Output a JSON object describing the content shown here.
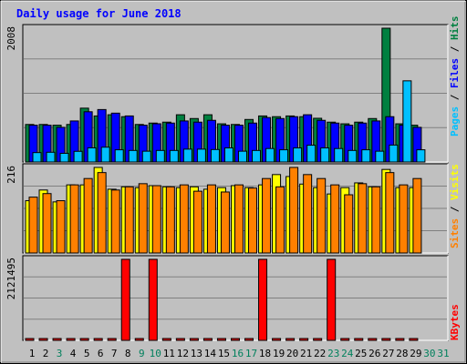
{
  "chart_data": [
    {
      "type": "bar",
      "title": "Daily usage for June 2018",
      "panel": "top",
      "ymax_label": "2008",
      "ylim": [
        0,
        2008
      ],
      "categories": [
        "1",
        "2",
        "3",
        "4",
        "5",
        "6",
        "7",
        "8",
        "9",
        "10",
        "11",
        "12",
        "13",
        "14",
        "15",
        "16",
        "17",
        "18",
        "19",
        "20",
        "21",
        "22",
        "23",
        "24",
        "25",
        "26",
        "27",
        "28",
        "29",
        "30",
        "31"
      ],
      "series": [
        {
          "name": "Hits",
          "color": "#008040",
          "values": [
            563,
            563,
            552,
            563,
            808,
            691,
            709,
            680,
            563,
            584,
            598,
            709,
            652,
            709,
            573,
            563,
            638,
            691,
            680,
            691,
            680,
            656,
            598,
            573,
            598,
            652,
            2008,
            573,
            552,
            0,
            0
          ]
        },
        {
          "name": "Files",
          "color": "#0000ff",
          "values": [
            552,
            552,
            520,
            616,
            754,
            787,
            733,
            691,
            552,
            574,
            584,
            616,
            598,
            625,
            552,
            552,
            584,
            667,
            652,
            680,
            709,
            625,
            584,
            552,
            584,
            616,
            680,
            552,
            520,
            0,
            0
          ]
        },
        {
          "name": "Pages",
          "color": "#00c0ff",
          "values": [
            141,
            146,
            130,
            160,
            212,
            222,
            183,
            173,
            162,
            173,
            173,
            193,
            193,
            187,
            211,
            162,
            173,
            202,
            183,
            211,
            252,
            211,
            202,
            173,
            183,
            162,
            254,
            1218,
            183,
            0,
            0
          ]
        }
      ],
      "legend_words": [
        "Pages",
        "Files",
        "Hits"
      ],
      "legend_colors": [
        "#00c0ff",
        "#0000ff",
        "#008040"
      ]
    },
    {
      "type": "bar",
      "panel": "middle",
      "ymax_label": "216",
      "ylim": [
        0,
        216
      ],
      "categories": [
        "1",
        "2",
        "3",
        "4",
        "5",
        "6",
        "7",
        "8",
        "9",
        "10",
        "11",
        "12",
        "13",
        "14",
        "15",
        "16",
        "17",
        "18",
        "19",
        "20",
        "21",
        "22",
        "23",
        "24",
        "25",
        "26",
        "27",
        "28",
        "29",
        "30",
        "31"
      ],
      "series": [
        {
          "name": "Visits",
          "color": "#ffff00",
          "values": [
            132,
            159,
            129,
            172,
            172,
            216,
            161,
            167,
            165,
            170,
            167,
            165,
            167,
            161,
            165,
            170,
            165,
            172,
            198,
            193,
            174,
            165,
            149,
            165,
            177,
            167,
            211,
            165,
            165,
            0,
            0
          ]
        },
        {
          "name": "Sites",
          "color": "#ff8000",
          "values": [
            141,
            150,
            132,
            172,
            188,
            203,
            159,
            167,
            175,
            170,
            167,
            172,
            156,
            172,
            154,
            172,
            164,
            188,
            167,
            216,
            198,
            188,
            172,
            147,
            175,
            167,
            203,
            172,
            188,
            0,
            0
          ]
        }
      ],
      "legend_words": [
        "Sites",
        "Visits"
      ],
      "legend_colors": [
        "#ff8000",
        "#ffff00"
      ]
    },
    {
      "type": "bar",
      "panel": "bottom",
      "ymax_label": "2121495",
      "ylim": [
        0,
        2121495
      ],
      "categories": [
        "1",
        "2",
        "3",
        "4",
        "5",
        "6",
        "7",
        "8",
        "9",
        "10",
        "11",
        "12",
        "13",
        "14",
        "15",
        "16",
        "17",
        "18",
        "19",
        "20",
        "21",
        "22",
        "23",
        "24",
        "25",
        "26",
        "27",
        "28",
        "29",
        "30",
        "31"
      ],
      "series": [
        {
          "name": "KBytes",
          "color": "#ff0000",
          "values": [
            18000,
            20000,
            18000,
            22000,
            22000,
            22000,
            40000,
            2121495,
            22000,
            2121495,
            22000,
            40000,
            18000,
            18000,
            20000,
            18000,
            18000,
            2121495,
            18000,
            22000,
            20000,
            22000,
            2121495,
            40000,
            22000,
            40000,
            22000,
            40000,
            22000,
            0,
            0
          ]
        }
      ],
      "legend_words": [
        "KBytes"
      ],
      "legend_colors": [
        "#ff0000"
      ]
    }
  ],
  "day_label_colors": [
    "#000000",
    "#000000",
    "#00805c",
    "#000000",
    "#000000",
    "#000000",
    "#000000",
    "#000000",
    "#00805c",
    "#00805c",
    "#000000",
    "#000000",
    "#000000",
    "#000000",
    "#000000",
    "#00805c",
    "#00805c",
    "#000000",
    "#000000",
    "#000000",
    "#000000",
    "#000000",
    "#00805c",
    "#00805c",
    "#000000",
    "#000000",
    "#000000",
    "#000000",
    "#000000",
    "#00805c",
    "#00805c"
  ],
  "colors": {
    "background": "#c0c0c0",
    "title": "#0000ff",
    "grid": "#808080"
  }
}
